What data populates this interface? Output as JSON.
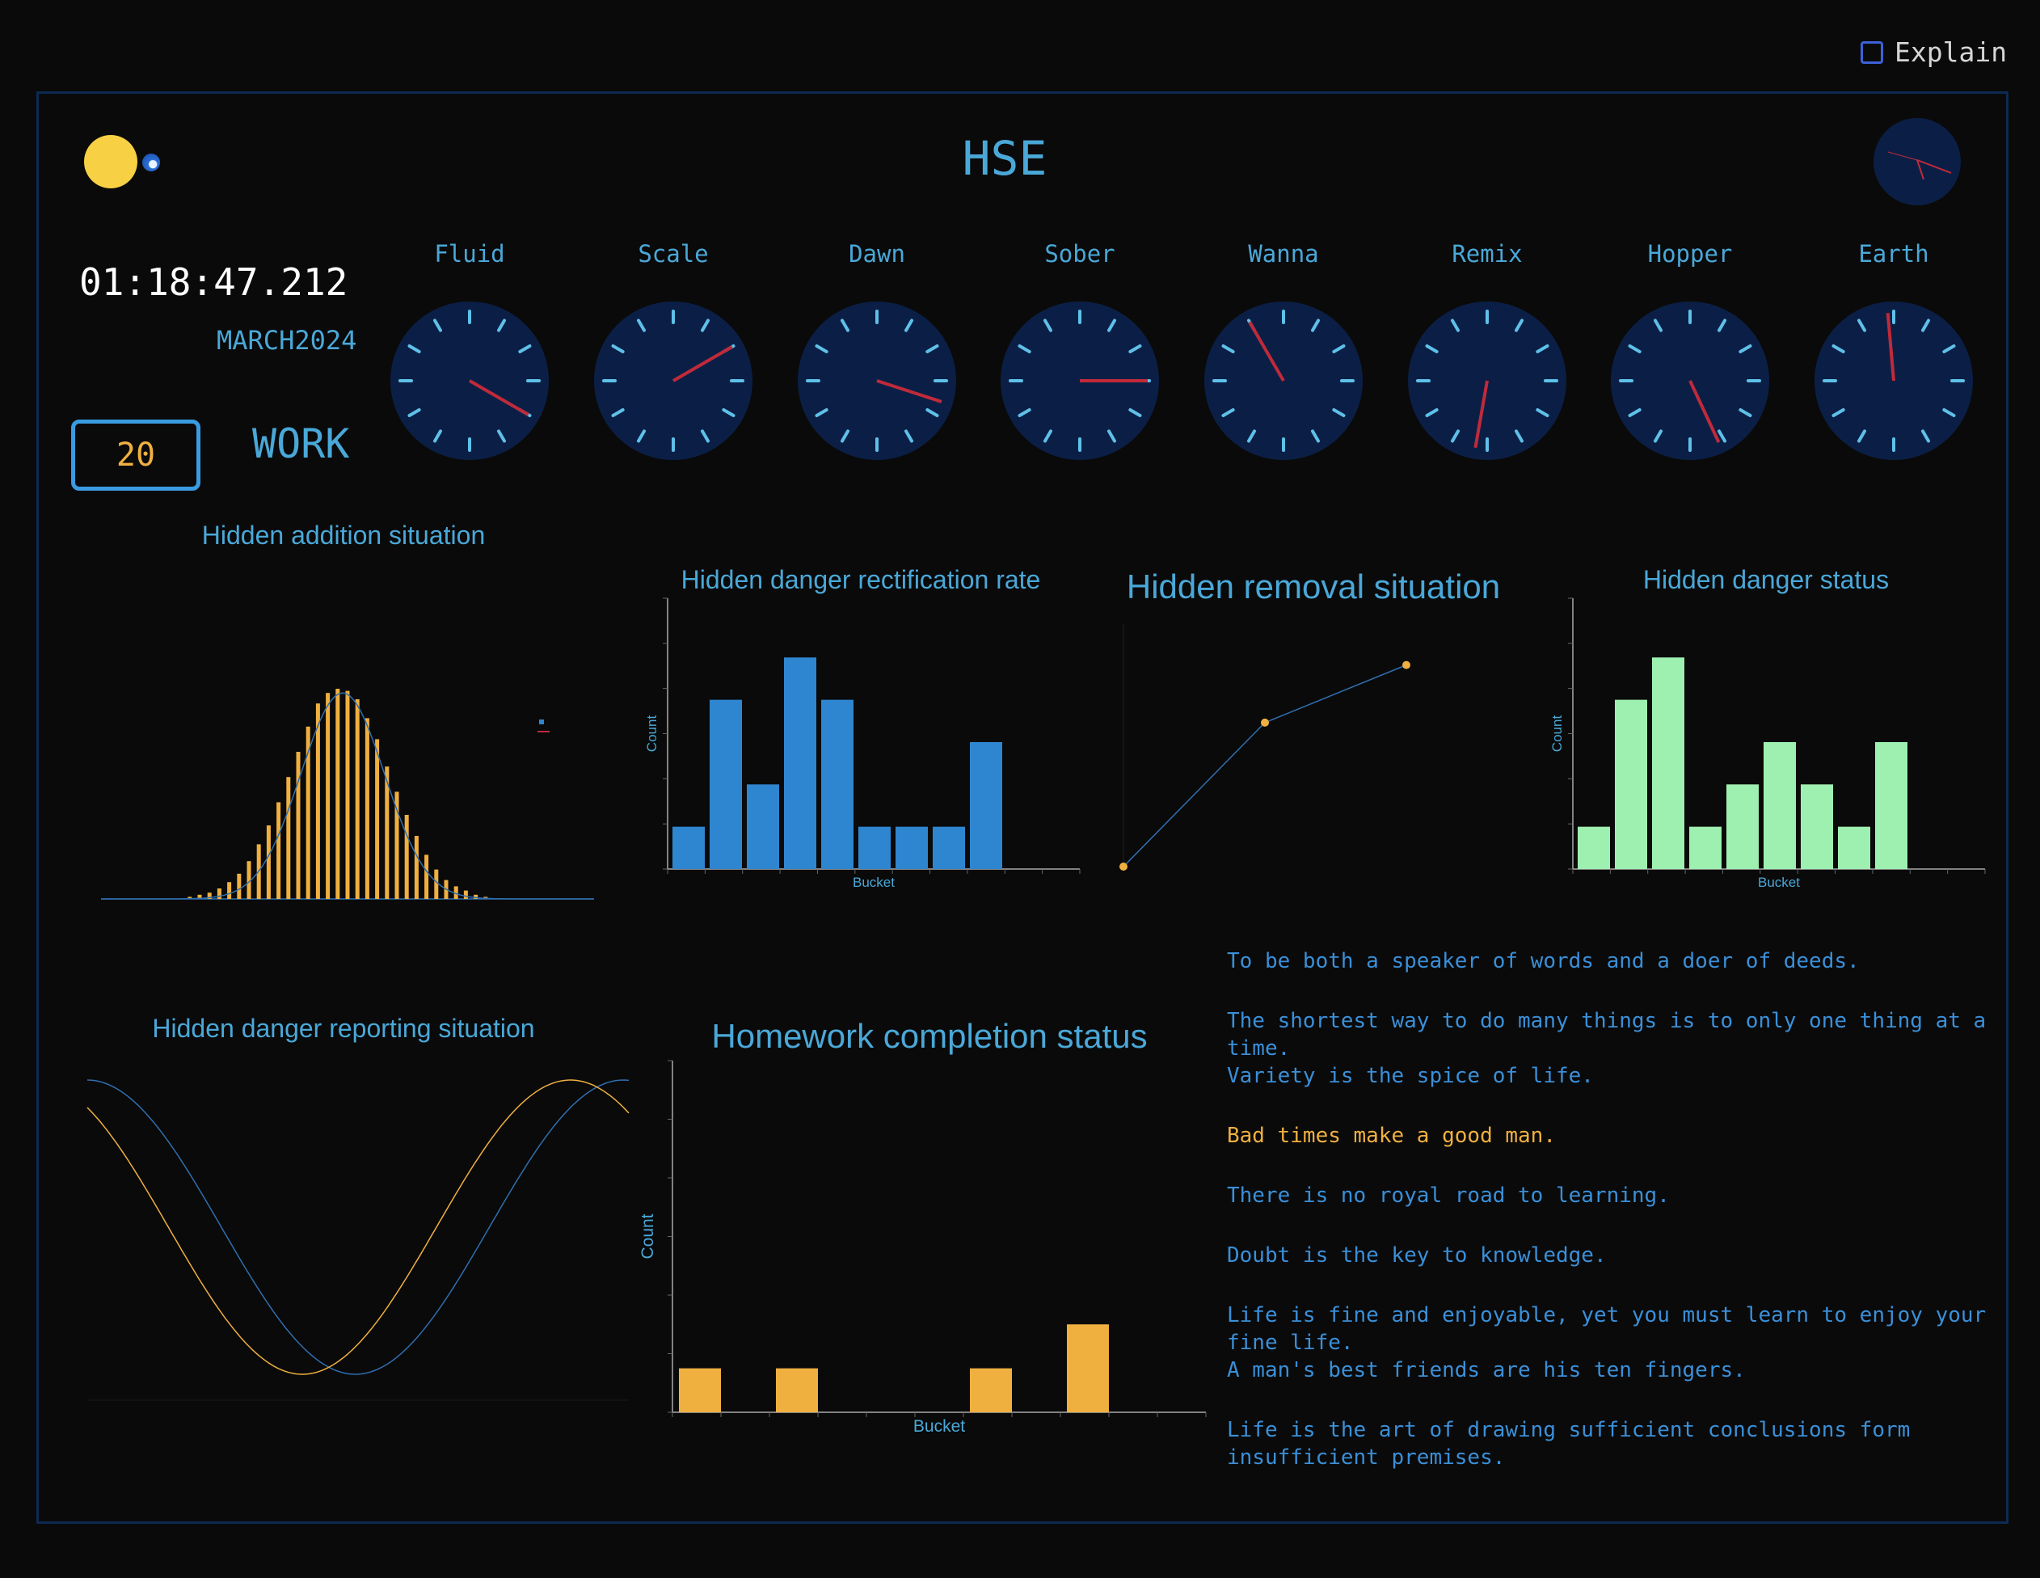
{
  "header": {
    "title": "HSE",
    "explain_label": "Explain",
    "time": "01:18:47.212",
    "date": "MARCH2024",
    "counter": "20",
    "mode": "WORK"
  },
  "clocks": [
    {
      "label": "Fluid"
    },
    {
      "label": "Scale"
    },
    {
      "label": "Dawn"
    },
    {
      "label": "Sober"
    },
    {
      "label": "Wanna"
    },
    {
      "label": "Remix"
    },
    {
      "label": "Hopper"
    },
    {
      "label": "Earth"
    }
  ],
  "colors": {
    "accent": "#4aa8d8",
    "orange": "#f0b040",
    "blue_bar": "#2f86d0",
    "green_bar": "#9ef0b0",
    "clock_face": "#0b1f46",
    "clock_hand": "#c02a3a",
    "ticks": "#5fc0e8"
  },
  "charts": {
    "addition": {
      "title": "Hidden addition situation"
    },
    "rectification": {
      "title": "Hidden danger rectification rate",
      "xlabel": "Bucket",
      "ylabel": "Count"
    },
    "removal": {
      "title": "Hidden removal situation"
    },
    "status": {
      "title": "Hidden danger status",
      "xlabel": "Bucket",
      "ylabel": "Count"
    },
    "reporting": {
      "title": "Hidden danger reporting situation"
    },
    "homework": {
      "title": "Homework completion status",
      "xlabel": "Bucket",
      "ylabel": "Count"
    }
  },
  "chart_data": [
    {
      "type": "bar",
      "id": "addition",
      "title": "Hidden addition situation",
      "x": [
        -5,
        -4.8,
        -4.6,
        -4.4,
        -4.2,
        -4,
        -3.8,
        -3.6,
        -3.4,
        -3.2,
        -3,
        -2.8,
        -2.6,
        -2.4,
        -2.2,
        -2,
        -1.8,
        -1.6,
        -1.4,
        -1.2,
        -1,
        -0.8,
        -0.6,
        -0.4,
        -0.2,
        0,
        0.2,
        0.4,
        0.6,
        0.8,
        1,
        1.2,
        1.4,
        1.6,
        1.8,
        2,
        2.2,
        2.4,
        2.6,
        2.8,
        3,
        3.2,
        3.4,
        3.6,
        3.8,
        4,
        4.2,
        4.4,
        4.6,
        4.8,
        5
      ],
      "values": [
        0,
        0,
        0,
        0,
        0,
        0,
        0,
        0,
        0,
        0.01,
        0.02,
        0.03,
        0.05,
        0.08,
        0.12,
        0.18,
        0.26,
        0.35,
        0.46,
        0.58,
        0.7,
        0.82,
        0.93,
        0.98,
        1.0,
        0.99,
        0.95,
        0.86,
        0.76,
        0.63,
        0.51,
        0.4,
        0.3,
        0.21,
        0.14,
        0.09,
        0.06,
        0.04,
        0.02,
        0.01,
        0,
        0,
        0,
        0,
        0,
        0,
        0,
        0,
        0,
        0,
        0
      ],
      "overlay": "normal density curve"
    },
    {
      "type": "bar",
      "id": "rectification",
      "title": "Hidden danger rectification rate",
      "xlabel": "Bucket",
      "ylabel": "Count",
      "values": [
        1,
        4,
        2,
        5,
        4,
        1,
        1,
        1,
        3
      ]
    },
    {
      "type": "line",
      "id": "removal",
      "title": "Hidden removal situation",
      "x": [
        0,
        1,
        2
      ],
      "y": [
        0,
        5,
        7
      ]
    },
    {
      "type": "bar",
      "id": "status",
      "title": "Hidden danger status",
      "xlabel": "Bucket",
      "ylabel": "Count",
      "values": [
        1,
        4,
        5,
        1,
        2,
        3,
        2,
        1,
        3
      ]
    },
    {
      "type": "line",
      "id": "reporting",
      "title": "Hidden danger reporting situation",
      "series": [
        {
          "color": "#2f6fb0",
          "kind": "cosine"
        },
        {
          "color": "#f0b040",
          "kind": "sine"
        }
      ]
    },
    {
      "type": "bar",
      "id": "homework",
      "title": "Homework completion status",
      "xlabel": "Bucket",
      "ylabel": "Count",
      "values": [
        1,
        0,
        1,
        0,
        0,
        0,
        1,
        0,
        2,
        0
      ]
    }
  ],
  "quotes": [
    {
      "text": "To be both a speaker of words and a doer of deeds.",
      "gap": true
    },
    {
      "text": "The shortest way to do many things is to only one thing at a time.",
      "gap": false
    },
    {
      "text": "Variety is the spice of life.",
      "gap": true
    },
    {
      "text": "Bad times make a good man.",
      "gap": true,
      "highlight": true
    },
    {
      "text": "There is no royal road to learning.",
      "gap": true
    },
    {
      "text": "Doubt is the key to knowledge.",
      "gap": true
    },
    {
      "text": "Life is fine and enjoyable, yet you must learn to enjoy your fine life.",
      "gap": false
    },
    {
      "text": "A man's best friends are his ten fingers.",
      "gap": true
    },
    {
      "text": "Life is the art of drawing sufficient conclusions form insufficient premises.",
      "gap": false
    }
  ]
}
